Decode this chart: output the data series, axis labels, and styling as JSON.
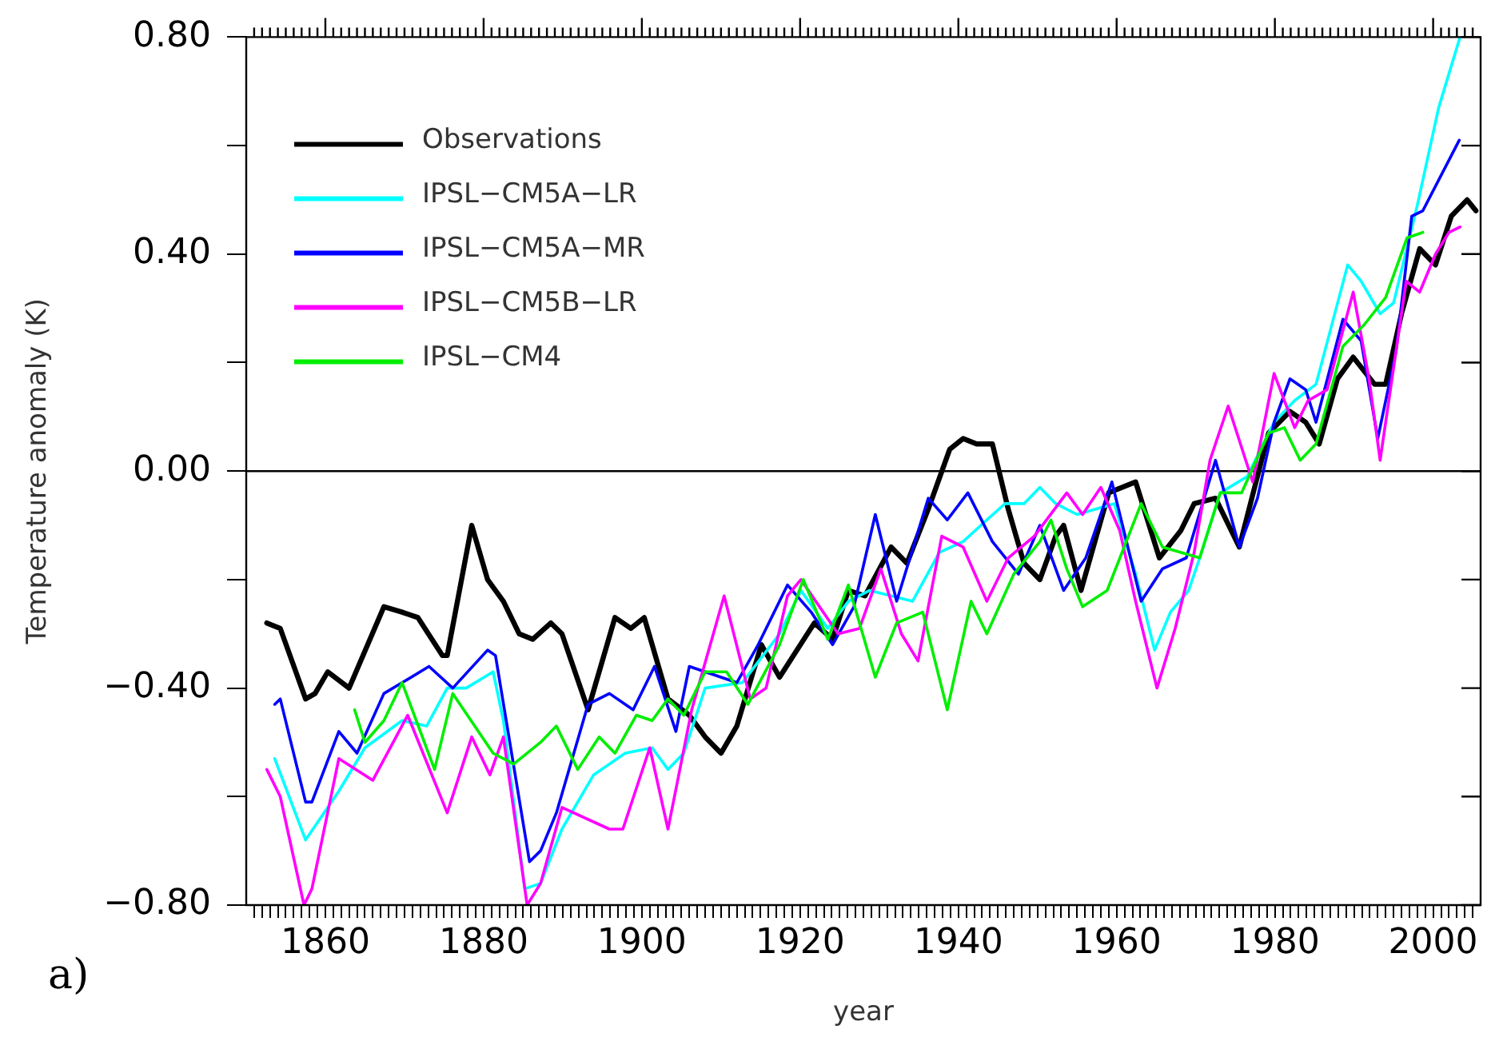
{
  "chart_data": {
    "type": "line",
    "xlabel": "year",
    "ylabel": "Temperature anomaly (K)",
    "annotations": [
      "a)"
    ],
    "xlim": [
      1850,
      2006
    ],
    "ylim": [
      -0.8,
      0.8
    ],
    "yticks": [
      {
        "value": -0.8,
        "label": "−0.80"
      },
      {
        "value": -0.6,
        "label": null
      },
      {
        "value": -0.4,
        "label": "−0.40"
      },
      {
        "value": -0.2,
        "label": null
      },
      {
        "value": 0,
        "label": "0.00"
      },
      {
        "value": 0.2,
        "label": null
      },
      {
        "value": 0.4,
        "label": "0.40"
      },
      {
        "value": 0.6,
        "label": null
      },
      {
        "value": 0.8,
        "label": "0.80"
      }
    ],
    "xticks": [
      {
        "value": 1851,
        "label": null
      },
      {
        "value": 1852,
        "label": null
      },
      {
        "value": 1853,
        "label": null
      },
      {
        "value": 1854,
        "label": null
      },
      {
        "value": 1855,
        "label": null
      },
      {
        "value": 1856,
        "label": null
      },
      {
        "value": 1857,
        "label": null
      },
      {
        "value": 1858,
        "label": null
      },
      {
        "value": 1859,
        "label": null
      },
      1860,
      {
        "value": 1861,
        "label": null
      },
      {
        "value": 1862,
        "label": null
      },
      {
        "value": 1863,
        "label": null
      },
      {
        "value": 1864,
        "label": null
      },
      {
        "value": 1865,
        "label": null
      },
      {
        "value": 1866,
        "label": null
      },
      {
        "value": 1867,
        "label": null
      },
      {
        "value": 1868,
        "label": null
      },
      {
        "value": 1869,
        "label": null
      },
      {
        "value": 1870,
        "label": null
      },
      {
        "value": 1871,
        "label": null
      },
      {
        "value": 1872,
        "label": null
      },
      {
        "value": 1873,
        "label": null
      },
      {
        "value": 1874,
        "label": null
      },
      {
        "value": 1875,
        "label": null
      },
      {
        "value": 1876,
        "label": null
      },
      {
        "value": 1877,
        "label": null
      },
      {
        "value": 1878,
        "label": null
      },
      {
        "value": 1879,
        "label": null
      },
      1880,
      {
        "value": 1881,
        "label": null
      },
      {
        "value": 1882,
        "label": null
      },
      {
        "value": 1883,
        "label": null
      },
      {
        "value": 1884,
        "label": null
      },
      {
        "value": 1885,
        "label": null
      },
      {
        "value": 1886,
        "label": null
      },
      {
        "value": 1887,
        "label": null
      },
      {
        "value": 1888,
        "label": null
      },
      {
        "value": 1889,
        "label": null
      },
      {
        "value": 1890,
        "label": null
      },
      {
        "value": 1891,
        "label": null
      },
      {
        "value": 1892,
        "label": null
      },
      {
        "value": 1893,
        "label": null
      },
      {
        "value": 1894,
        "label": null
      },
      {
        "value": 1895,
        "label": null
      },
      {
        "value": 1896,
        "label": null
      },
      {
        "value": 1897,
        "label": null
      },
      {
        "value": 1898,
        "label": null
      },
      {
        "value": 1899,
        "label": null
      },
      1900,
      {
        "value": 1901,
        "label": null
      },
      {
        "value": 1902,
        "label": null
      },
      {
        "value": 1903,
        "label": null
      },
      {
        "value": 1904,
        "label": null
      },
      {
        "value": 1905,
        "label": null
      },
      {
        "value": 1906,
        "label": null
      },
      {
        "value": 1907,
        "label": null
      },
      {
        "value": 1908,
        "label": null
      },
      {
        "value": 1909,
        "label": null
      },
      {
        "value": 1910,
        "label": null
      },
      {
        "value": 1911,
        "label": null
      },
      {
        "value": 1912,
        "label": null
      },
      {
        "value": 1913,
        "label": null
      },
      {
        "value": 1914,
        "label": null
      },
      {
        "value": 1915,
        "label": null
      },
      {
        "value": 1916,
        "label": null
      },
      {
        "value": 1917,
        "label": null
      },
      {
        "value": 1918,
        "label": null
      },
      {
        "value": 1919,
        "label": null
      },
      1920,
      {
        "value": 1921,
        "label": null
      },
      {
        "value": 1922,
        "label": null
      },
      {
        "value": 1923,
        "label": null
      },
      {
        "value": 1924,
        "label": null
      },
      {
        "value": 1925,
        "label": null
      },
      {
        "value": 1926,
        "label": null
      },
      {
        "value": 1927,
        "label": null
      },
      {
        "value": 1928,
        "label": null
      },
      {
        "value": 1929,
        "label": null
      },
      {
        "value": 1930,
        "label": null
      },
      {
        "value": 1931,
        "label": null
      },
      {
        "value": 1932,
        "label": null
      },
      {
        "value": 1933,
        "label": null
      },
      {
        "value": 1934,
        "label": null
      },
      {
        "value": 1935,
        "label": null
      },
      {
        "value": 1936,
        "label": null
      },
      {
        "value": 1937,
        "label": null
      },
      {
        "value": 1938,
        "label": null
      },
      {
        "value": 1939,
        "label": null
      },
      1940,
      {
        "value": 1941,
        "label": null
      },
      {
        "value": 1942,
        "label": null
      },
      {
        "value": 1943,
        "label": null
      },
      {
        "value": 1944,
        "label": null
      },
      {
        "value": 1945,
        "label": null
      },
      {
        "value": 1946,
        "label": null
      },
      {
        "value": 1947,
        "label": null
      },
      {
        "value": 1948,
        "label": null
      },
      {
        "value": 1949,
        "label": null
      },
      {
        "value": 1950,
        "label": null
      },
      {
        "value": 1951,
        "label": null
      },
      {
        "value": 1952,
        "label": null
      },
      {
        "value": 1953,
        "label": null
      },
      {
        "value": 1954,
        "label": null
      },
      {
        "value": 1955,
        "label": null
      },
      {
        "value": 1956,
        "label": null
      },
      {
        "value": 1957,
        "label": null
      },
      {
        "value": 1958,
        "label": null
      },
      {
        "value": 1959,
        "label": null
      },
      1960,
      {
        "value": 1961,
        "label": null
      },
      {
        "value": 1962,
        "label": null
      },
      {
        "value": 1963,
        "label": null
      },
      {
        "value": 1964,
        "label": null
      },
      {
        "value": 1965,
        "label": null
      },
      {
        "value": 1966,
        "label": null
      },
      {
        "value": 1967,
        "label": null
      },
      {
        "value": 1968,
        "label": null
      },
      {
        "value": 1969,
        "label": null
      },
      {
        "value": 1970,
        "label": null
      },
      {
        "value": 1971,
        "label": null
      },
      {
        "value": 1972,
        "label": null
      },
      {
        "value": 1973,
        "label": null
      },
      {
        "value": 1974,
        "label": null
      },
      {
        "value": 1975,
        "label": null
      },
      {
        "value": 1976,
        "label": null
      },
      {
        "value": 1977,
        "label": null
      },
      {
        "value": 1978,
        "label": null
      },
      {
        "value": 1979,
        "label": null
      },
      1980,
      {
        "value": 1981,
        "label": null
      },
      {
        "value": 1982,
        "label": null
      },
      {
        "value": 1983,
        "label": null
      },
      {
        "value": 1984,
        "label": null
      },
      {
        "value": 1985,
        "label": null
      },
      {
        "value": 1986,
        "label": null
      },
      {
        "value": 1987,
        "label": null
      },
      {
        "value": 1988,
        "label": null
      },
      {
        "value": 1989,
        "label": null
      },
      {
        "value": 1990,
        "label": null
      },
      {
        "value": 1991,
        "label": null
      },
      {
        "value": 1992,
        "label": null
      },
      {
        "value": 1993,
        "label": null
      },
      {
        "value": 1994,
        "label": null
      },
      {
        "value": 1995,
        "label": null
      },
      {
        "value": 1996,
        "label": null
      },
      {
        "value": 1997,
        "label": null
      },
      {
        "value": 1998,
        "label": null
      },
      {
        "value": 1999,
        "label": null
      },
      2000,
      {
        "value": 2001,
        "label": null
      },
      {
        "value": 2002,
        "label": null
      },
      {
        "value": 2003,
        "label": null
      },
      {
        "value": 2004,
        "label": null
      },
      {
        "value": 2005,
        "label": null
      }
    ],
    "grid": false,
    "legend": "top left",
    "marker": "none",
    "line_style": "solid",
    "ref_lines": [
      {
        "axis": "y",
        "value": 0,
        "label": null,
        "color": "#000000"
      }
    ],
    "series": [
      {
        "name": "Observations",
        "color": "#000000",
        "x": [
          1852.6,
          1854.3,
          1857.5,
          1858.7,
          1860.3,
          1863.0,
          1867.4,
          1869.7,
          1871.7,
          1874.8,
          1875.4,
          1878.5,
          1880.5,
          1882.5,
          1884.5,
          1886.2,
          1888.5,
          1889.9,
          1893.2,
          1896.6,
          1898.6,
          1900.3,
          1903.3,
          1906,
          1908,
          1910,
          1912,
          1915.1,
          1917.4,
          1921.8,
          1924.1,
          1926.1,
          1928.2,
          1931.5,
          1933.5,
          1936.2,
          1938.9,
          1940.6,
          1942.3,
          1944.3,
          1946.3,
          1948.3,
          1950.3,
          1952.3,
          1953.3,
          1955.5,
          1959.0,
          1962.4,
          1965.4,
          1968.1,
          1969.8,
          1972.5,
          1975.5,
          1979.2,
          1981.9,
          1983.9,
          1985.6,
          1987.9,
          1989.9,
          1992.6,
          1994.0,
          1996.0,
          1998.3,
          2000.3,
          2002.3,
          2004.3,
          2005.4
        ],
        "values": [
          -0.28,
          -0.29,
          -0.42,
          -0.41,
          -0.37,
          -0.4,
          -0.25,
          -0.26,
          -0.27,
          -0.34,
          -0.34,
          -0.1,
          -0.2,
          -0.24,
          -0.3,
          -0.31,
          -0.28,
          -0.3,
          -0.44,
          -0.27,
          -0.29,
          -0.27,
          -0.42,
          -0.45,
          -0.49,
          -0.52,
          -0.47,
          -0.32,
          -0.38,
          -0.28,
          -0.31,
          -0.22,
          -0.23,
          -0.14,
          -0.17,
          -0.07,
          0.04,
          0.06,
          0.05,
          0.05,
          -0.07,
          -0.17,
          -0.2,
          -0.12,
          -0.1,
          -0.22,
          -0.04,
          -0.02,
          -0.16,
          -0.11,
          -0.06,
          -0.05,
          -0.14,
          0.07,
          0.11,
          0.09,
          0.05,
          0.17,
          0.21,
          0.16,
          0.16,
          0.29,
          0.41,
          0.38,
          0.47,
          0.5,
          0.48
        ]
      },
      {
        "name": "IPSL−CM5A−LR",
        "color": "#00ffff",
        "x": [
          1853.6,
          1857.5,
          1861.7,
          1865.0,
          1869.7,
          1872.8,
          1875.4,
          1877.8,
          1881.2,
          1882.5,
          1885.2,
          1887.2,
          1889.9,
          1893.9,
          1897.9,
          1901.3,
          1903.3,
          1905.3,
          1908.0,
          1912.7,
          1917.4,
          1920.1,
          1923.5,
          1926.1,
          1928.8,
          1931.5,
          1934.2,
          1937.6,
          1940.6,
          1943.6,
          1945.9,
          1948.3,
          1950.3,
          1952.3,
          1955.0,
          1959.7,
          1962.4,
          1964.8,
          1966.8,
          1969.1,
          1970.5,
          1973.1,
          1976.5,
          1979.9,
          1982.5,
          1985.2,
          1989.2,
          1990.9,
          1993.3,
          1995.0,
          1998.0,
          2000.7,
          2003.4
        ],
        "values": [
          -0.53,
          -0.68,
          -0.59,
          -0.51,
          -0.46,
          -0.47,
          -0.4,
          -0.4,
          -0.37,
          -0.46,
          -0.77,
          -0.76,
          -0.66,
          -0.56,
          -0.52,
          -0.51,
          -0.55,
          -0.52,
          -0.4,
          -0.39,
          -0.3,
          -0.22,
          -0.29,
          -0.24,
          -0.22,
          -0.23,
          -0.24,
          -0.15,
          -0.13,
          -0.09,
          -0.06,
          -0.06,
          -0.03,
          -0.06,
          -0.08,
          -0.06,
          -0.19,
          -0.33,
          -0.26,
          -0.22,
          -0.16,
          -0.04,
          -0.01,
          0.09,
          0.13,
          0.16,
          0.38,
          0.35,
          0.29,
          0.31,
          0.49,
          0.67,
          0.8
        ]
      },
      {
        "name": "IPSL−CM5A−MR",
        "color": "#0000ff",
        "x": [
          1853.6,
          1854.3,
          1857.5,
          1858.3,
          1861.7,
          1864.0,
          1867.4,
          1869.7,
          1873.1,
          1876.1,
          1880.5,
          1881.5,
          1885.8,
          1887.2,
          1889.2,
          1893.2,
          1895.9,
          1898.9,
          1901.6,
          1904.3,
          1906.0,
          1908.0,
          1912.0,
          1914.7,
          1918.4,
          1921.4,
          1924.1,
          1926.8,
          1929.5,
          1932.2,
          1936.2,
          1938.6,
          1941.2,
          1944.3,
          1947.6,
          1950.3,
          1953.3,
          1956.1,
          1959.4,
          1963.1,
          1965.8,
          1968.8,
          1972.5,
          1975.5,
          1977.8,
          1979.9,
          1981.9,
          1983.9,
          1985.2,
          1988.6,
          1990.9,
          1993.0,
          1995.3,
          1997.3,
          1998.7,
          2003.3
        ],
        "values": [
          -0.43,
          -0.42,
          -0.61,
          -0.61,
          -0.48,
          -0.52,
          -0.41,
          -0.39,
          -0.36,
          -0.4,
          -0.33,
          -0.34,
          -0.72,
          -0.7,
          -0.63,
          -0.43,
          -0.41,
          -0.44,
          -0.36,
          -0.48,
          -0.36,
          -0.37,
          -0.39,
          -0.32,
          -0.21,
          -0.26,
          -0.32,
          -0.25,
          -0.08,
          -0.24,
          -0.05,
          -0.09,
          -0.04,
          -0.13,
          -0.19,
          -0.1,
          -0.22,
          -0.16,
          -0.02,
          -0.24,
          -0.18,
          -0.16,
          0.02,
          -0.14,
          -0.05,
          0.09,
          0.17,
          0.15,
          0.09,
          0.28,
          0.24,
          0.06,
          0.22,
          0.47,
          0.48,
          0.61
        ]
      },
      {
        "name": "IPSL−CM5B−LR",
        "color": "#ff00ff",
        "x": [
          1852.6,
          1854.3,
          1857.3,
          1858.3,
          1861.7,
          1866.0,
          1870.4,
          1875.4,
          1878.5,
          1880.8,
          1882.5,
          1885.5,
          1887.2,
          1889.9,
          1895.9,
          1897.6,
          1901.0,
          1903.3,
          1906.3,
          1910.4,
          1913.7,
          1915.7,
          1918.4,
          1920.1,
          1924.8,
          1927.5,
          1930.2,
          1932.8,
          1934.9,
          1937.9,
          1940.6,
          1943.6,
          1946.3,
          1949.6,
          1953.7,
          1955.7,
          1958.0,
          1960.4,
          1962.4,
          1965.1,
          1967.4,
          1969.8,
          1971.8,
          1974.1,
          1977.2,
          1979.9,
          1982.5,
          1984.2,
          1986.6,
          1989.9,
          1991.9,
          1993.3,
          1996.6,
          1998.3,
          2000.3,
          2002.0,
          2003.4
        ],
        "values": [
          -0.55,
          -0.6,
          -0.8,
          -0.77,
          -0.53,
          -0.57,
          -0.45,
          -0.63,
          -0.49,
          -0.56,
          -0.49,
          -0.8,
          -0.76,
          -0.62,
          -0.66,
          -0.66,
          -0.51,
          -0.66,
          -0.44,
          -0.23,
          -0.42,
          -0.4,
          -0.23,
          -0.2,
          -0.3,
          -0.29,
          -0.18,
          -0.3,
          -0.35,
          -0.12,
          -0.14,
          -0.24,
          -0.16,
          -0.12,
          -0.04,
          -0.08,
          -0.03,
          -0.11,
          -0.24,
          -0.4,
          -0.29,
          -0.15,
          0.02,
          0.12,
          -0.02,
          0.18,
          0.08,
          0.13,
          0.15,
          0.33,
          0.17,
          0.02,
          0.35,
          0.33,
          0.4,
          0.44,
          0.45
        ]
      },
      {
        "name": "IPSL−CM4",
        "color": "#00ee00",
        "x": [
          1863.7,
          1865.0,
          1867.4,
          1869.7,
          1873.8,
          1876.1,
          1881.2,
          1883.8,
          1887.2,
          1889.2,
          1891.9,
          1894.6,
          1896.6,
          1899.3,
          1901.3,
          1903.3,
          1905.3,
          1908.0,
          1910.7,
          1913.4,
          1917.4,
          1920.4,
          1923.5,
          1926.1,
          1929.5,
          1932.2,
          1935.5,
          1938.6,
          1941.6,
          1943.6,
          1947.0,
          1950.3,
          1951.7,
          1953.7,
          1955.7,
          1958.8,
          1963.1,
          1965.8,
          1970.5,
          1973.1,
          1975.8,
          1979.2,
          1981.2,
          1983.2,
          1985.2,
          1988.6,
          1991.3,
          1994.0,
          1996.7,
          1998.7
        ],
        "values": [
          -0.44,
          -0.5,
          -0.46,
          -0.39,
          -0.55,
          -0.41,
          -0.52,
          -0.54,
          -0.5,
          -0.47,
          -0.55,
          -0.49,
          -0.52,
          -0.45,
          -0.46,
          -0.42,
          -0.45,
          -0.37,
          -0.37,
          -0.43,
          -0.32,
          -0.2,
          -0.31,
          -0.21,
          -0.38,
          -0.28,
          -0.26,
          -0.44,
          -0.24,
          -0.3,
          -0.19,
          -0.13,
          -0.09,
          -0.18,
          -0.25,
          -0.22,
          -0.06,
          -0.14,
          -0.16,
          -0.04,
          -0.04,
          0.07,
          0.08,
          0.02,
          0.05,
          0.23,
          0.27,
          0.32,
          0.43,
          0.44
        ]
      }
    ]
  }
}
